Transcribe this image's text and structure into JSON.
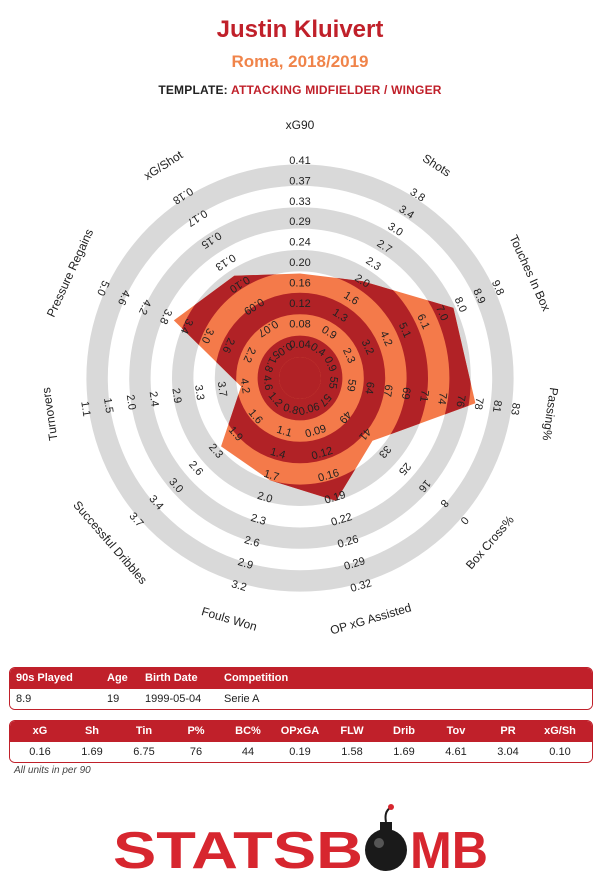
{
  "header": {
    "player_name": "Justin Kluivert",
    "team_season": "Roma, 2018/2019",
    "template_label": "TEMPLATE:",
    "template_value": "ATTACKING MIDFIELDER / WINGER"
  },
  "colors": {
    "accent": "#c0202a",
    "orange": "#f47a4a",
    "dark_red": "#b12226",
    "ring_grey": "#d9d9d9"
  },
  "chart_data": {
    "type": "radar",
    "axes": [
      {
        "label": "xG90",
        "ticks": [
          "0.04",
          "0.08",
          "0.12",
          "0.16",
          "0.20",
          "0.24",
          "0.29",
          "0.33",
          "0.37",
          "0.41"
        ],
        "value": 0.16,
        "fraction": 0.39
      },
      {
        "label": "Shots",
        "ticks": [
          "0.4",
          "0.9",
          "1.3",
          "1.6",
          "2.0",
          "2.3",
          "2.7",
          "3.0",
          "3.4",
          "3.8"
        ],
        "value": 1.69,
        "fraction": 0.44
      },
      {
        "label": "Touches In Box",
        "ticks": [
          "0.9",
          "2.3",
          "3.2",
          "4.2",
          "5.1",
          "6.1",
          "7.0",
          "8.0",
          "8.9",
          "9.8"
        ],
        "value": 6.75,
        "fraction": 0.69
      },
      {
        "label": "Passing%",
        "ticks": [
          "55",
          "59",
          "64",
          "67",
          "69",
          "71",
          "74",
          "76",
          "78",
          "81",
          "83"
        ],
        "value": 76,
        "fraction": 0.73
      },
      {
        "label": "Box Cross%",
        "ticks": [
          "57",
          "49",
          "41",
          "33",
          "25",
          "16",
          "8",
          "0"
        ],
        "value": 44,
        "fraction": 0.35
      },
      {
        "label": "OP xG Assisted",
        "ticks": [
          "0.06",
          "0.09",
          "0.12",
          "0.16",
          "0.19",
          "0.22",
          "0.26",
          "0.29",
          "0.32"
        ],
        "value": 0.19,
        "fraction": 0.5
      },
      {
        "label": "Fouls Won",
        "ticks": [
          "0.8",
          "1.1",
          "1.4",
          "1.7",
          "2.0",
          "2.3",
          "2.6",
          "2.9",
          "3.2"
        ],
        "value": 1.58,
        "fraction": 0.4
      },
      {
        "label": "Successful Dribbles",
        "ticks": [
          "1.2",
          "1.6",
          "1.9",
          "2.3",
          "2.6",
          "3.0",
          "3.4",
          "3.7"
        ],
        "value": 1.69,
        "fraction": 0.39
      },
      {
        "label": "Turnovers",
        "ticks": [
          "4.6",
          "4.2",
          "3.7",
          "3.3",
          "2.9",
          "2.4",
          "2.0",
          "1.5",
          "1.1"
        ],
        "value": 4.61,
        "fraction": 0.18
      },
      {
        "label": "Pressure Regains",
        "ticks": [
          "1.8",
          "2.2",
          "2.6",
          "3.0",
          "3.4",
          "3.8",
          "4.2",
          "4.6",
          "5.0"
        ],
        "value": 3.04,
        "fraction": 0.55
      },
      {
        "label": "xG/Shot",
        "ticks": [
          "0.05",
          "0.07",
          "0.09",
          "0.10",
          "0.13",
          "0.15",
          "0.17",
          "0.18"
        ],
        "value": 0.1,
        "fraction": 0.47
      }
    ]
  },
  "info_table": {
    "headers": [
      "90s Played",
      "Age",
      "Birth Date",
      "Competition"
    ],
    "values": [
      "8.9",
      "19",
      "1999-05-04",
      "Serie A"
    ]
  },
  "stats_table": {
    "headers": [
      "xG",
      "Sh",
      "Tin",
      "P%",
      "BC%",
      "OPxGA",
      "FLW",
      "Drib",
      "Tov",
      "PR",
      "xG/Sh"
    ],
    "values": [
      "0.16",
      "1.69",
      "6.75",
      "76",
      "44",
      "0.19",
      "1.58",
      "1.69",
      "4.61",
      "3.04",
      "0.10"
    ]
  },
  "footnote": "All units in per 90",
  "logo": {
    "text_left": "STATSB",
    "text_right": "MB",
    "icon": "bomb-icon"
  }
}
